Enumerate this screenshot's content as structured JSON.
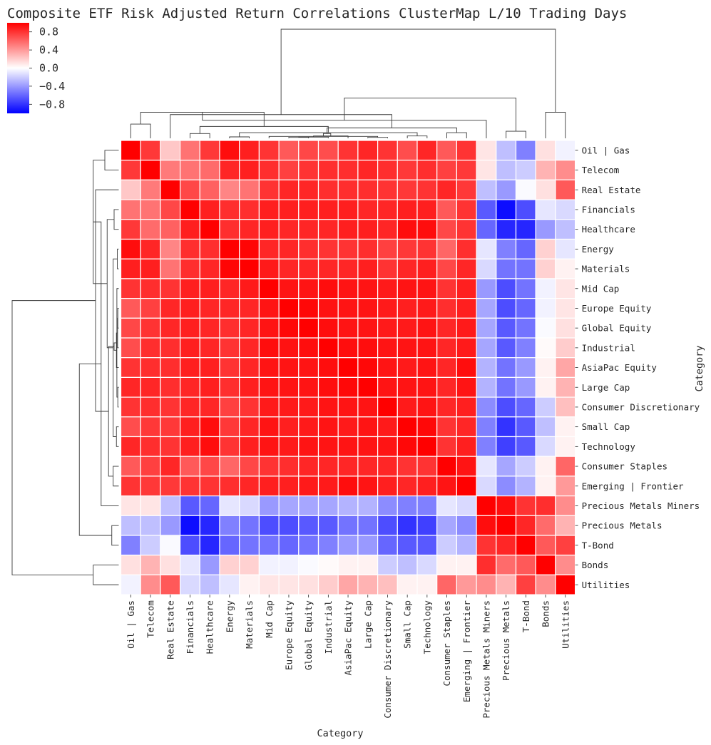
{
  "chart_data": {
    "type": "heatmap",
    "title": "Composite ETF Risk Adjusted Return Correlations ClusterMap L/10 Trading Days",
    "xlabel": "Category",
    "ylabel": "Category",
    "labels": [
      "Oil | Gas",
      "Telecom",
      "Real Estate",
      "Financials",
      "Healthcare",
      "Energy",
      "Materials",
      "Mid Cap",
      "Europe Equity",
      "Global Equity",
      "Industrial",
      "AsiaPac Equity",
      "Large Cap",
      "Consumer Discretionary",
      "Small Cap",
      "Technology",
      "Consumer Staples",
      "Emerging | Frontier",
      "Precious Metals Miners",
      "Precious Metals",
      "T-Bond",
      "Bonds",
      "Utilities"
    ],
    "values": [
      [
        1.0,
        0.78,
        0.22,
        0.55,
        0.78,
        0.95,
        0.88,
        0.8,
        0.65,
        0.72,
        0.7,
        0.8,
        0.85,
        0.8,
        0.7,
        0.85,
        0.65,
        0.8,
        0.1,
        -0.25,
        -0.5,
        0.12,
        -0.05
      ],
      [
        0.78,
        1.0,
        0.52,
        0.55,
        0.58,
        0.85,
        0.88,
        0.82,
        0.75,
        0.8,
        0.82,
        0.82,
        0.85,
        0.82,
        0.78,
        0.82,
        0.75,
        0.78,
        0.1,
        -0.25,
        -0.2,
        0.3,
        0.45
      ],
      [
        0.22,
        0.52,
        1.0,
        0.72,
        0.62,
        0.48,
        0.55,
        0.8,
        0.85,
        0.85,
        0.82,
        0.82,
        0.82,
        0.8,
        0.78,
        0.8,
        0.85,
        0.78,
        -0.25,
        -0.4,
        -0.02,
        0.12,
        0.65
      ],
      [
        0.55,
        0.55,
        0.72,
        1.0,
        0.88,
        0.82,
        0.82,
        0.88,
        0.88,
        0.88,
        0.88,
        0.88,
        0.85,
        0.85,
        0.88,
        0.88,
        0.65,
        0.8,
        -0.65,
        -0.95,
        -0.7,
        -0.1,
        -0.15
      ],
      [
        0.78,
        0.58,
        0.62,
        0.88,
        1.0,
        0.82,
        0.85,
        0.88,
        0.85,
        0.85,
        0.85,
        0.88,
        0.88,
        0.85,
        0.95,
        0.95,
        0.72,
        0.8,
        -0.6,
        -0.85,
        -0.85,
        -0.4,
        -0.25
      ],
      [
        0.95,
        0.85,
        0.48,
        0.82,
        0.82,
        1.0,
        0.98,
        0.85,
        0.85,
        0.82,
        0.8,
        0.8,
        0.82,
        0.75,
        0.78,
        0.8,
        0.6,
        0.82,
        -0.1,
        -0.5,
        -0.6,
        0.18,
        -0.1
      ],
      [
        0.88,
        0.88,
        0.55,
        0.82,
        0.85,
        0.98,
        1.0,
        0.9,
        0.85,
        0.85,
        0.85,
        0.85,
        0.88,
        0.8,
        0.85,
        0.88,
        0.72,
        0.85,
        -0.15,
        -0.55,
        -0.55,
        0.18,
        0.05
      ],
      [
        0.8,
        0.82,
        0.8,
        0.88,
        0.88,
        0.85,
        0.9,
        1.0,
        0.92,
        0.92,
        0.95,
        0.92,
        0.92,
        0.9,
        0.92,
        0.92,
        0.8,
        0.88,
        -0.4,
        -0.7,
        -0.55,
        -0.05,
        0.1
      ],
      [
        0.65,
        0.75,
        0.85,
        0.88,
        0.85,
        0.85,
        0.85,
        0.92,
        1.0,
        0.97,
        0.93,
        0.92,
        0.92,
        0.9,
        0.88,
        0.9,
        0.82,
        0.88,
        -0.35,
        -0.7,
        -0.6,
        -0.05,
        0.1
      ],
      [
        0.72,
        0.8,
        0.85,
        0.88,
        0.85,
        0.82,
        0.85,
        0.92,
        0.97,
        1.0,
        0.95,
        0.92,
        0.92,
        0.9,
        0.9,
        0.92,
        0.85,
        0.9,
        -0.35,
        -0.65,
        -0.55,
        -0.02,
        0.12
      ],
      [
        0.7,
        0.82,
        0.82,
        0.88,
        0.85,
        0.8,
        0.85,
        0.95,
        0.93,
        0.95,
        1.0,
        0.95,
        0.95,
        0.92,
        0.92,
        0.92,
        0.85,
        0.9,
        -0.35,
        -0.65,
        -0.5,
        0.02,
        0.2
      ],
      [
        0.8,
        0.82,
        0.82,
        0.88,
        0.88,
        0.8,
        0.85,
        0.92,
        0.92,
        0.92,
        0.95,
        1.0,
        0.97,
        0.92,
        0.9,
        0.92,
        0.85,
        0.95,
        -0.3,
        -0.55,
        -0.4,
        0.05,
        0.35
      ],
      [
        0.85,
        0.85,
        0.82,
        0.85,
        0.88,
        0.82,
        0.88,
        0.92,
        0.92,
        0.92,
        0.95,
        0.97,
        1.0,
        0.92,
        0.92,
        0.92,
        0.85,
        0.92,
        -0.3,
        -0.55,
        -0.4,
        0.05,
        0.3
      ],
      [
        0.8,
        0.82,
        0.8,
        0.85,
        0.85,
        0.75,
        0.8,
        0.9,
        0.9,
        0.9,
        0.92,
        0.92,
        0.92,
        1.0,
        0.9,
        0.92,
        0.85,
        0.88,
        -0.45,
        -0.7,
        -0.6,
        -0.2,
        0.25
      ],
      [
        0.7,
        0.78,
        0.78,
        0.88,
        0.95,
        0.78,
        0.85,
        0.92,
        0.88,
        0.9,
        0.92,
        0.9,
        0.92,
        0.9,
        1.0,
        0.97,
        0.8,
        0.85,
        -0.5,
        -0.8,
        -0.65,
        -0.25,
        0.05
      ],
      [
        0.85,
        0.82,
        0.8,
        0.88,
        0.95,
        0.8,
        0.88,
        0.92,
        0.9,
        0.92,
        0.92,
        0.92,
        0.92,
        0.92,
        0.97,
        1.0,
        0.8,
        0.88,
        -0.5,
        -0.75,
        -0.65,
        -0.15,
        0.05
      ],
      [
        0.65,
        0.75,
        0.85,
        0.65,
        0.72,
        0.6,
        0.72,
        0.8,
        0.82,
        0.85,
        0.85,
        0.85,
        0.85,
        0.85,
        0.8,
        0.8,
        1.0,
        0.92,
        -0.1,
        -0.35,
        -0.2,
        0.05,
        0.6
      ],
      [
        0.8,
        0.78,
        0.78,
        0.8,
        0.8,
        0.82,
        0.85,
        0.88,
        0.88,
        0.9,
        0.9,
        0.95,
        0.92,
        0.88,
        0.85,
        0.88,
        0.92,
        1.0,
        -0.15,
        -0.45,
        -0.3,
        0.05,
        0.4
      ],
      [
        0.1,
        0.1,
        -0.25,
        -0.65,
        -0.6,
        -0.1,
        -0.15,
        -0.4,
        -0.35,
        -0.35,
        -0.35,
        -0.3,
        -0.3,
        -0.45,
        -0.5,
        -0.5,
        -0.1,
        -0.15,
        1.0,
        0.95,
        0.8,
        0.82,
        0.45
      ],
      [
        -0.25,
        -0.25,
        -0.4,
        -0.95,
        -0.85,
        -0.5,
        -0.55,
        -0.7,
        -0.7,
        -0.65,
        -0.65,
        -0.55,
        -0.55,
        -0.7,
        -0.8,
        -0.75,
        -0.35,
        -0.45,
        0.95,
        1.0,
        0.85,
        0.58,
        0.3
      ],
      [
        -0.5,
        -0.2,
        -0.02,
        -0.7,
        -0.85,
        -0.6,
        -0.55,
        -0.55,
        -0.6,
        -0.55,
        -0.5,
        -0.4,
        -0.4,
        -0.6,
        -0.65,
        -0.65,
        -0.2,
        -0.3,
        0.8,
        0.85,
        1.0,
        0.65,
        0.75
      ],
      [
        0.12,
        0.3,
        0.12,
        -0.1,
        -0.4,
        0.18,
        0.18,
        -0.05,
        -0.05,
        -0.02,
        0.02,
        0.05,
        0.05,
        -0.2,
        -0.25,
        -0.15,
        0.05,
        0.05,
        0.82,
        0.58,
        0.65,
        1.0,
        0.45
      ],
      [
        -0.05,
        0.45,
        0.65,
        -0.15,
        -0.25,
        -0.1,
        0.05,
        0.1,
        0.1,
        0.12,
        0.2,
        0.35,
        0.3,
        0.25,
        0.05,
        0.05,
        0.6,
        0.4,
        0.45,
        0.3,
        0.75,
        0.45,
        1.0
      ]
    ],
    "vmin": -1.0,
    "vmax": 1.0,
    "colormap": "bwr",
    "colorbar": {
      "ticks": [
        0.8,
        0.4,
        0.0,
        -0.4,
        -0.8
      ],
      "tick_labels": [
        "0.8",
        "0.4",
        "0.0",
        "−0.4",
        "−0.8"
      ]
    },
    "dendrogram": {
      "linkage_order": [
        [
          0,
          1,
          0.3
        ],
        [
          3,
          4,
          0.1
        ],
        [
          5,
          6,
          0.03
        ],
        [
          8,
          9,
          0.02
        ],
        [
          12,
          13,
          0.02
        ],
        [
          26,
          10,
          0.025
        ],
        [
          27,
          7,
          0.04
        ],
        [
          28,
          11,
          0.05
        ],
        [
          14,
          15,
          0.05
        ],
        [
          16,
          17,
          0.12
        ],
        [
          29,
          30,
          0.1
        ],
        [
          31,
          25,
          0.12
        ],
        [
          33,
          32,
          0.22
        ],
        [
          34,
          24,
          0.25
        ],
        [
          35,
          2,
          0.5
        ],
        [
          36,
          23,
          0.55
        ],
        [
          19,
          20,
          0.15
        ],
        [
          18,
          38,
          0.38
        ],
        [
          21,
          22,
          0.55
        ],
        [
          39,
          40,
          0.85
        ],
        [
          37,
          41,
          2.3
        ]
      ]
    }
  }
}
